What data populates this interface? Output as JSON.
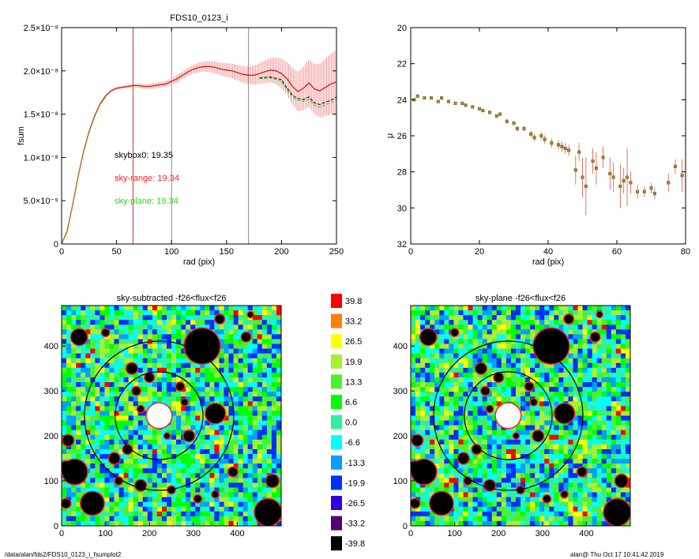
{
  "footer": {
    "path": "/data/alan/fds2/FDS10_0123_i_fsumplot2",
    "stamp": "alan@  Thu Oct 17 10:41:42 2019"
  },
  "chart_data": [
    {
      "type": "line",
      "title": "FDS10_0123_i",
      "xlabel": "rad (pix)",
      "ylabel": "fsum",
      "xlim": [
        0,
        250
      ],
      "ylim": [
        0,
        2.5e-08
      ],
      "xticks": [
        "0",
        "50",
        "100",
        "150",
        "200",
        "250"
      ],
      "yticks": [
        "0",
        "5.0×10⁻⁹",
        "1.0×10⁻⁸",
        "1.5×10⁻⁸",
        "2.0×10⁻⁸",
        "2.5×10⁻⁸"
      ],
      "vlines": [
        {
          "x": 65,
          "color": "#e03030"
        },
        {
          "x": 100,
          "color": "#888888"
        },
        {
          "x": 170,
          "color": "#888888"
        }
      ],
      "annotations": [
        {
          "text": "skybox0: 19.35",
          "color": "#000000"
        },
        {
          "text": "sky-range: 19.34",
          "color": "#ff2020"
        },
        {
          "text": "sky-plane: 19.34",
          "color": "#22dd22"
        }
      ],
      "series": [
        {
          "color": "#cc2020",
          "x": [
            0,
            5,
            10,
            15,
            20,
            25,
            30,
            35,
            40,
            45,
            50,
            55,
            60,
            65,
            70,
            75,
            80,
            85,
            90,
            95,
            100,
            105,
            110,
            115,
            120,
            125,
            130,
            135,
            140,
            145,
            150,
            155,
            160,
            165,
            170,
            175,
            180,
            185,
            190,
            195,
            200,
            205,
            210,
            215,
            220,
            225,
            230,
            235,
            240,
            245,
            250
          ],
          "y": [
            0,
            1.5e-09,
            4.5e-09,
            7.8e-09,
            1.07e-08,
            1.3e-08,
            1.48e-08,
            1.62e-08,
            1.71e-08,
            1.77e-08,
            1.8e-08,
            1.81e-08,
            1.82e-08,
            1.83e-08,
            1.83e-08,
            1.82e-08,
            1.82e-08,
            1.83e-08,
            1.84e-08,
            1.85e-08,
            1.88e-08,
            1.91e-08,
            1.95e-08,
            1.99e-08,
            2.02e-08,
            2.04e-08,
            2.05e-08,
            2.05e-08,
            2.04e-08,
            2.02e-08,
            2.01e-08,
            2e-08,
            1.98e-08,
            1.96e-08,
            1.95e-08,
            1.95e-08,
            1.97e-08,
            1.99e-08,
            2.01e-08,
            2e-08,
            1.97e-08,
            1.91e-08,
            1.82e-08,
            1.76e-08,
            1.8e-08,
            1.86e-08,
            1.79e-08,
            1.77e-08,
            1.81e-08,
            1.85e-08,
            1.87e-08
          ]
        },
        {
          "color": "#000000",
          "x": [
            180,
            190,
            200,
            205,
            210,
            215,
            220,
            225,
            230,
            235,
            240,
            245,
            250
          ],
          "y": [
            1.92e-08,
            1.93e-08,
            1.9e-08,
            1.8e-08,
            1.72e-08,
            1.68e-08,
            1.67e-08,
            1.7e-08,
            1.63e-08,
            1.61e-08,
            1.64e-08,
            1.66e-08,
            1.7e-08
          ]
        },
        {
          "color": "#22cc22",
          "x": [
            180,
            190,
            200,
            205,
            210,
            215,
            220,
            225,
            230,
            235,
            240,
            245,
            250
          ],
          "y": [
            1.91e-08,
            1.92e-08,
            1.88e-08,
            1.78e-08,
            1.7e-08,
            1.66e-08,
            1.65e-08,
            1.67e-08,
            1.6e-08,
            1.58e-08,
            1.61e-08,
            1.63e-08,
            1.67e-08
          ]
        },
        {
          "color": "#aa8822",
          "x": [
            0,
            5,
            10,
            15,
            20,
            25,
            30,
            35,
            40
          ],
          "y": [
            0,
            1.4e-09,
            4.4e-09,
            7.7e-09,
            1.06e-08,
            1.29e-08,
            1.47e-08,
            1.61e-08,
            1.7e-08
          ]
        }
      ],
      "error_x": [
        10,
        20,
        30,
        40,
        50,
        60,
        70,
        80,
        90,
        100,
        110,
        120,
        130,
        140,
        150,
        160,
        170,
        180,
        190,
        200,
        205,
        210,
        215,
        220,
        225,
        230,
        235,
        240,
        245,
        250
      ],
      "error_halfwidth": [
        5e-11,
        8e-11,
        1e-10,
        1.2e-10,
        1.5e-10,
        2e-10,
        2.5e-10,
        3e-10,
        3.5e-10,
        4e-10,
        4.5e-10,
        5e-10,
        6e-10,
        7e-10,
        8e-10,
        9e-10,
        1e-09,
        1.2e-09,
        1.4e-09,
        1.7e-09,
        1.9e-09,
        2.1e-09,
        2.3e-09,
        2.5e-09,
        2.7e-09,
        2.9e-09,
        3.1e-09,
        3.3e-09,
        3.5e-09,
        3.7e-09
      ]
    },
    {
      "type": "scatter",
      "title": "",
      "xlabel": "rad (pix)",
      "ylabel": "μ",
      "xlim": [
        0,
        80
      ],
      "ylim": [
        20,
        32
      ],
      "y_inverted": true,
      "xticks": [
        "0",
        "20",
        "40",
        "60",
        "80"
      ],
      "yticks": [
        "20",
        "22",
        "24",
        "26",
        "28",
        "30",
        "32"
      ],
      "points": {
        "x": [
          1,
          2,
          4,
          6,
          8,
          9,
          11,
          13,
          15,
          16,
          18,
          20,
          21,
          23,
          25,
          26,
          28,
          30,
          31,
          33,
          35,
          36,
          38,
          39,
          41,
          43,
          44,
          45,
          46,
          48,
          49,
          50,
          51,
          53,
          54,
          56,
          58,
          59,
          61,
          62,
          63,
          64,
          66,
          68,
          70,
          71,
          75,
          77,
          79
        ],
        "y": [
          24.0,
          23.8,
          23.9,
          23.9,
          24.1,
          23.9,
          24.1,
          24.2,
          24.2,
          24.3,
          24.4,
          24.5,
          24.6,
          24.7,
          24.9,
          24.8,
          25.2,
          25.3,
          25.6,
          25.6,
          25.9,
          26.1,
          26.0,
          26.2,
          26.4,
          26.5,
          26.6,
          26.7,
          26.8,
          27.9,
          26.9,
          28.3,
          28.8,
          27.4,
          27.8,
          27.2,
          28.1,
          28.3,
          28.8,
          28.5,
          28.3,
          28.6,
          29.1,
          29.1,
          28.9,
          29.2,
          28.6,
          27.7,
          28.2
        ],
        "err": [
          0.05,
          0.05,
          0.05,
          0.05,
          0.05,
          0.05,
          0.06,
          0.06,
          0.07,
          0.07,
          0.08,
          0.08,
          0.09,
          0.1,
          0.1,
          0.1,
          0.12,
          0.13,
          0.15,
          0.15,
          0.18,
          0.2,
          0.2,
          0.22,
          0.25,
          0.25,
          0.28,
          0.3,
          0.3,
          0.8,
          0.5,
          1.1,
          1.6,
          0.7,
          0.9,
          0.6,
          0.9,
          0.8,
          1.2,
          0.7,
          1.6,
          0.6,
          0.4,
          0.3,
          0.3,
          0.3,
          0.5,
          0.4,
          0.9
        ]
      }
    },
    {
      "type": "heatmap",
      "title": "sky-subtracted -f26<flux<f26",
      "xlim": [
        0,
        500
      ],
      "ylim": [
        0,
        490
      ],
      "xticks": [
        "0",
        "100",
        "200",
        "300",
        "400"
      ],
      "yticks": [
        "0",
        "100",
        "200",
        "300",
        "400"
      ],
      "circles": [
        {
          "cx": 222,
          "cy": 245,
          "r": 100
        },
        {
          "cx": 222,
          "cy": 245,
          "r": 170
        }
      ],
      "masked_sources": [
        {
          "cx": 222,
          "cy": 245,
          "r": 28,
          "color": "#ffffff"
        },
        {
          "cx": 40,
          "cy": 420,
          "r": 18
        },
        {
          "cx": 15,
          "cy": 190,
          "r": 12
        },
        {
          "cx": 10,
          "cy": 130,
          "r": 14
        },
        {
          "cx": 30,
          "cy": 120,
          "r": 28
        },
        {
          "cx": 70,
          "cy": 50,
          "r": 26
        },
        {
          "cx": 10,
          "cy": 50,
          "r": 10
        },
        {
          "cx": 160,
          "cy": 350,
          "r": 12
        },
        {
          "cx": 200,
          "cy": 330,
          "r": 10
        },
        {
          "cx": 170,
          "cy": 300,
          "r": 9
        },
        {
          "cx": 270,
          "cy": 310,
          "r": 9
        },
        {
          "cx": 280,
          "cy": 275,
          "r": 7
        },
        {
          "cx": 180,
          "cy": 260,
          "r": 7
        },
        {
          "cx": 290,
          "cy": 200,
          "r": 12
        },
        {
          "cx": 150,
          "cy": 170,
          "r": 10
        },
        {
          "cx": 120,
          "cy": 150,
          "r": 12
        },
        {
          "cx": 130,
          "cy": 100,
          "r": 8
        },
        {
          "cx": 180,
          "cy": 90,
          "r": 12
        },
        {
          "cx": 250,
          "cy": 80,
          "r": 8
        },
        {
          "cx": 310,
          "cy": 60,
          "r": 8
        },
        {
          "cx": 350,
          "cy": 70,
          "r": 7
        },
        {
          "cx": 390,
          "cy": 120,
          "r": 10
        },
        {
          "cx": 320,
          "cy": 400,
          "r": 40
        },
        {
          "cx": 350,
          "cy": 250,
          "r": 22
        },
        {
          "cx": 420,
          "cy": 420,
          "r": 10
        },
        {
          "cx": 480,
          "cy": 100,
          "r": 14
        },
        {
          "cx": 470,
          "cy": 30,
          "r": 30
        },
        {
          "cx": 100,
          "cy": 430,
          "r": 8
        },
        {
          "cx": 360,
          "cy": 460,
          "r": 10
        },
        {
          "cx": 430,
          "cy": 470,
          "r": 6
        },
        {
          "cx": 240,
          "cy": 200,
          "r": 6
        }
      ]
    },
    {
      "type": "heatmap",
      "title": "sky-plane -f26<flux<f26",
      "xlim": [
        0,
        500
      ],
      "ylim": [
        0,
        490
      ],
      "xticks": [
        "0",
        "100",
        "200",
        "300",
        "400"
      ],
      "yticks": [
        "0",
        "100",
        "200",
        "300",
        "400"
      ],
      "circles": [
        {
          "cx": 222,
          "cy": 245,
          "r": 100
        },
        {
          "cx": 222,
          "cy": 245,
          "r": 170
        }
      ]
    }
  ],
  "colorbar": {
    "labels": [
      "39.8",
      "33.2",
      "26.5",
      "19.9",
      "13.3",
      "6.6",
      "0.0",
      "-6.6",
      "-13.3",
      "-19.9",
      "-26.5",
      "-33.2",
      "-39.8"
    ],
    "colors": [
      "#ff0000",
      "#ff7f00",
      "#ffff00",
      "#a8f030",
      "#50f030",
      "#00ff00",
      "#30f0a0",
      "#00ffff",
      "#00a0ff",
      "#0030ff",
      "#3000e0",
      "#500070",
      "#000000"
    ]
  }
}
